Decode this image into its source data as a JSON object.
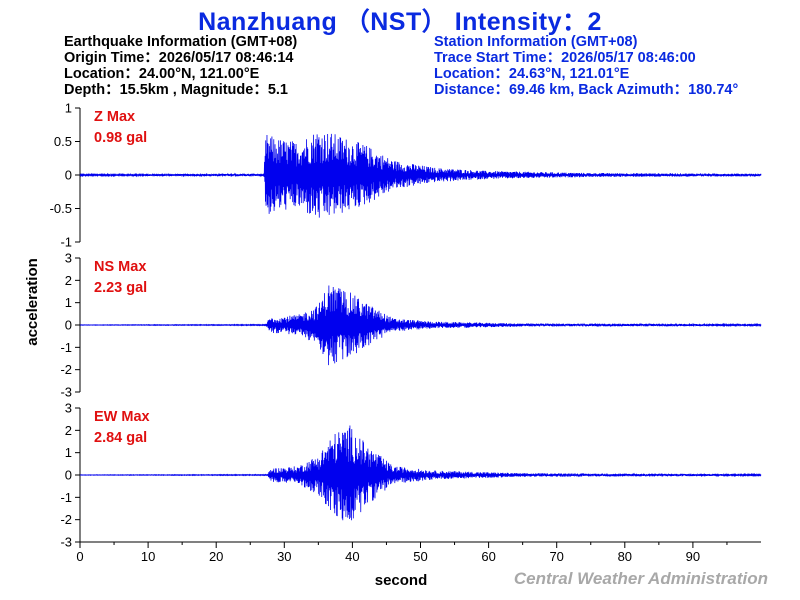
{
  "title": "Nanzhuang （NST） Intensity：2",
  "earthquake_info": {
    "heading": "Earthquake Information  (GMT+08)",
    "origin_time": "Origin Time：2026/05/17 08:46:14",
    "location": "Location：24.00°N, 121.00°E",
    "depth_magnitude": "Depth：15.5km , Magnitude：5.1"
  },
  "station_info": {
    "heading": "Station Information  (GMT+08)",
    "trace_start": "Trace Start Time：2026/05/17 08:46:00",
    "location": "Location：24.63°N, 121.01°E",
    "distance": "Distance：69.46 km, Back Azimuth：180.74°"
  },
  "footer": "Central Weather Administration",
  "chart_data": {
    "type": "line",
    "xlabel": "second",
    "ylabel": "acceleration",
    "xlim": [
      0,
      100
    ],
    "x_ticks": [
      0,
      10,
      20,
      30,
      40,
      50,
      60,
      70,
      80,
      90
    ],
    "line_color": "#0000ee",
    "grid": false,
    "panels": [
      {
        "component": "Z",
        "max_label": "Z Max",
        "max_value": "0.98 gal",
        "ylim": [
          -1,
          1
        ],
        "y_ticks": [
          1,
          0.5,
          0,
          -0.5,
          -1
        ],
        "y_tick_labels": [
          "1",
          "0.5",
          "0",
          "-0.5",
          "-1"
        ],
        "envelope": [
          {
            "t": 0,
            "a": 0.01
          },
          {
            "t": 27.0,
            "a": 0.02
          },
          {
            "t": 27.3,
            "a": 0.62
          },
          {
            "t": 29,
            "a": 0.55
          },
          {
            "t": 32,
            "a": 0.5
          },
          {
            "t": 35,
            "a": 0.7
          },
          {
            "t": 38,
            "a": 0.6
          },
          {
            "t": 42,
            "a": 0.45
          },
          {
            "t": 46,
            "a": 0.22
          },
          {
            "t": 52,
            "a": 0.11
          },
          {
            "t": 60,
            "a": 0.06
          },
          {
            "t": 75,
            "a": 0.03
          },
          {
            "t": 100,
            "a": 0.02
          }
        ]
      },
      {
        "component": "NS",
        "max_label": "NS Max",
        "max_value": "2.23 gal",
        "ylim": [
          -3,
          3
        ],
        "y_ticks": [
          3,
          2,
          1,
          0,
          -1,
          -2,
          -3
        ],
        "y_tick_labels": [
          "3",
          "2",
          "1",
          "0",
          "-1",
          "-2",
          "-3"
        ],
        "envelope": [
          {
            "t": 0,
            "a": 0.01
          },
          {
            "t": 27.3,
            "a": 0.02
          },
          {
            "t": 27.8,
            "a": 0.35
          },
          {
            "t": 32,
            "a": 0.45
          },
          {
            "t": 35,
            "a": 0.9
          },
          {
            "t": 36.5,
            "a": 1.9
          },
          {
            "t": 39,
            "a": 1.6
          },
          {
            "t": 42,
            "a": 1.0
          },
          {
            "t": 46,
            "a": 0.3
          },
          {
            "t": 52,
            "a": 0.15
          },
          {
            "t": 65,
            "a": 0.07
          },
          {
            "t": 100,
            "a": 0.04
          }
        ]
      },
      {
        "component": "EW",
        "max_label": "EW Max",
        "max_value": "2.84 gal",
        "ylim": [
          -3,
          3
        ],
        "y_ticks": [
          3,
          2,
          1,
          0,
          -1,
          -2,
          -3
        ],
        "y_tick_labels": [
          "3",
          "2",
          "1",
          "0",
          "-1",
          "-2",
          "-3"
        ],
        "envelope": [
          {
            "t": 0,
            "a": 0.01
          },
          {
            "t": 27.5,
            "a": 0.02
          },
          {
            "t": 28,
            "a": 0.3
          },
          {
            "t": 32,
            "a": 0.4
          },
          {
            "t": 35,
            "a": 0.9
          },
          {
            "t": 37,
            "a": 1.8
          },
          {
            "t": 39.5,
            "a": 2.3
          },
          {
            "t": 42,
            "a": 1.4
          },
          {
            "t": 46,
            "a": 0.4
          },
          {
            "t": 52,
            "a": 0.2
          },
          {
            "t": 65,
            "a": 0.08
          },
          {
            "t": 100,
            "a": 0.04
          }
        ]
      }
    ]
  }
}
